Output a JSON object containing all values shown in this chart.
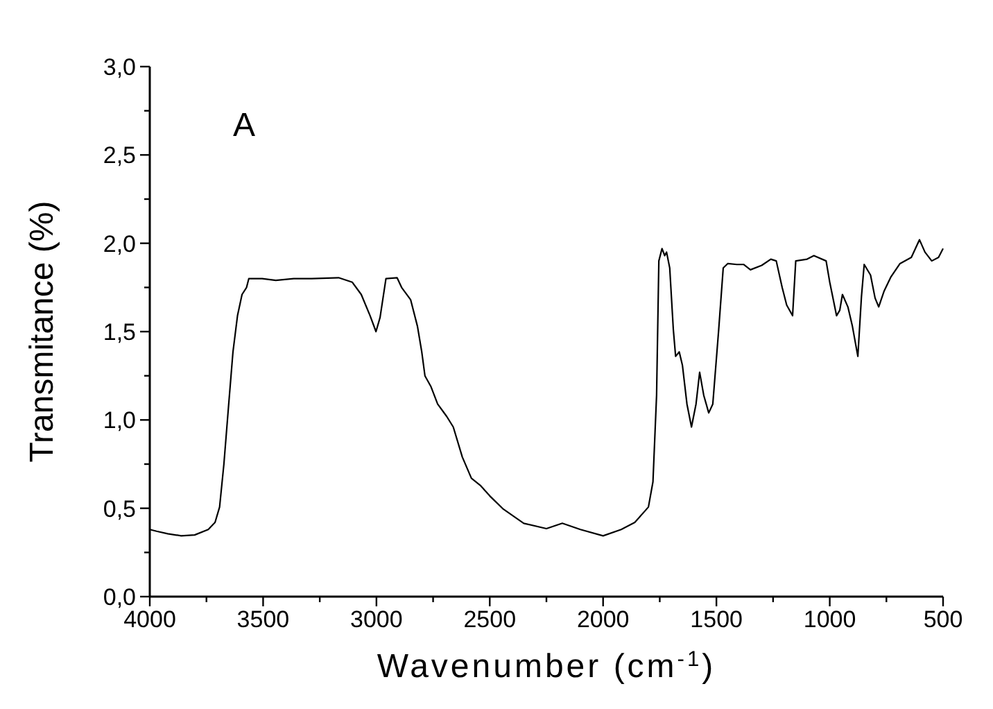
{
  "chart_data": {
    "type": "line",
    "xlabel": "Wavenumber (cm$^{-1}$)",
    "ylabel": "Transmitance (%)",
    "annotations": [
      "A"
    ],
    "xlim": [
      4000,
      500
    ],
    "xticks": [
      4000,
      {
        "value": 3750,
        "label": null
      },
      3500,
      {
        "value": 3250,
        "label": null
      },
      3000,
      {
        "value": 2750,
        "label": null
      },
      2500,
      {
        "value": 2250,
        "label": null
      },
      2000,
      {
        "value": 1750,
        "label": null
      },
      1500,
      {
        "value": 1250,
        "label": null
      },
      1000,
      {
        "value": 750,
        "label": null
      },
      500
    ],
    "ylim": [
      0,
      3
    ],
    "yticks": [
      {
        "value": 0,
        "label": "0,0"
      },
      {
        "value": 0.25,
        "label": null
      },
      {
        "value": 0.5,
        "label": "0,5"
      },
      {
        "value": 0.75,
        "label": null
      },
      {
        "value": 1,
        "label": "1,0"
      },
      {
        "value": 1.25,
        "label": null
      },
      {
        "value": 1.5,
        "label": "1,5"
      },
      {
        "value": 1.75,
        "label": null
      },
      {
        "value": 2,
        "label": "2,0"
      },
      {
        "value": 2.25,
        "label": null
      },
      {
        "value": 2.5,
        "label": "2,5"
      },
      {
        "value": 2.75,
        "label": null
      },
      {
        "value": 3,
        "label": "3,0"
      }
    ],
    "grid": false,
    "marker": "none",
    "line_style": "solid",
    "series": [
      {
        "color": "#000000",
        "x": [
          4000,
          3970,
          3921,
          3861,
          3802,
          3742,
          3712,
          3692,
          3673,
          3653,
          3633,
          3613,
          3593,
          3573,
          3563,
          3504,
          3444,
          3365,
          3286,
          3167,
          3107,
          3067,
          3028,
          3002,
          2984,
          2958,
          2909,
          2889,
          2849,
          2819,
          2800,
          2786,
          2760,
          2730,
          2690,
          2661,
          2621,
          2581,
          2542,
          2500,
          2440,
          2350,
          2250,
          2180,
          2100,
          2000,
          1920,
          1860,
          1800,
          1780,
          1764,
          1754,
          1740,
          1728,
          1720,
          1706,
          1690,
          1680,
          1664,
          1650,
          1630,
          1610,
          1590,
          1574,
          1556,
          1534,
          1516,
          1490,
          1470,
          1450,
          1410,
          1380,
          1350,
          1300,
          1260,
          1236,
          1210,
          1190,
          1164,
          1150,
          1100,
          1070,
          1016,
          1000,
          970,
          956,
          944,
          920,
          900,
          876,
          860,
          848,
          820,
          800,
          784,
          760,
          730,
          690,
          640,
          604,
          580,
          550,
          520,
          500
        ],
        "values": [
          0.38,
          0.37,
          0.356,
          0.344,
          0.349,
          0.38,
          0.42,
          0.507,
          0.75,
          1.07,
          1.385,
          1.59,
          1.71,
          1.75,
          1.8,
          1.8,
          1.79,
          1.8,
          1.8,
          1.805,
          1.78,
          1.71,
          1.59,
          1.5,
          1.58,
          1.8,
          1.805,
          1.75,
          1.68,
          1.53,
          1.385,
          1.25,
          1.19,
          1.09,
          1.02,
          0.96,
          0.79,
          0.67,
          0.63,
          0.57,
          0.495,
          0.415,
          0.385,
          0.415,
          0.38,
          0.344,
          0.38,
          0.42,
          0.507,
          0.65,
          1.14,
          1.9,
          1.97,
          1.93,
          1.95,
          1.86,
          1.51,
          1.36,
          1.385,
          1.31,
          1.09,
          0.96,
          1.09,
          1.27,
          1.14,
          1.04,
          1.09,
          1.51,
          1.86,
          1.885,
          1.88,
          1.88,
          1.85,
          1.875,
          1.91,
          1.9,
          1.75,
          1.65,
          1.59,
          1.9,
          1.91,
          1.93,
          1.9,
          1.78,
          1.59,
          1.62,
          1.71,
          1.64,
          1.53,
          1.36,
          1.7,
          1.88,
          1.82,
          1.69,
          1.64,
          1.73,
          1.81,
          1.885,
          1.92,
          2.02,
          1.95,
          1.9,
          1.92,
          1.97
        ]
      }
    ]
  }
}
